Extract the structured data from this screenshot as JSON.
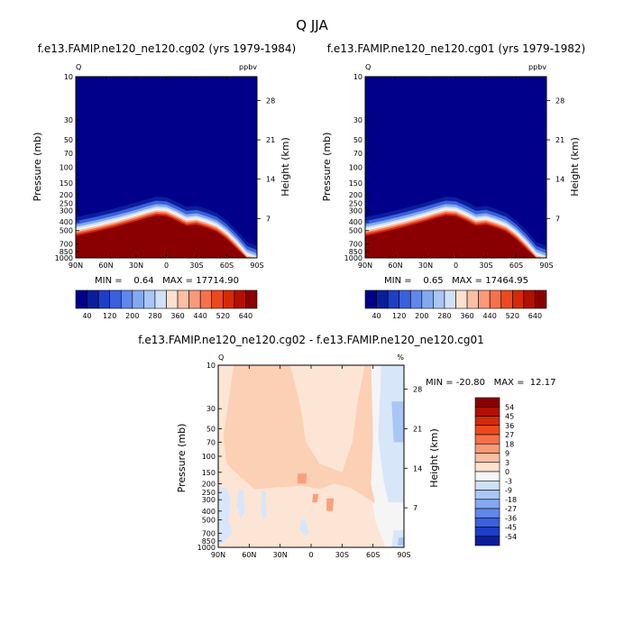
{
  "page": {
    "title": "Q  JJA"
  },
  "chart_data": [
    {
      "type": "heatmap",
      "id": "panel_a",
      "title": "f.e13.FAMIP.ne120_ne120.cg02 (yrs 1979-1984)",
      "left_label": "Q",
      "right_label": "ppbv",
      "ylabel": "Pressure (mb)",
      "y2label": "Height (km)",
      "x_ticks": [
        "90N",
        "60N",
        "30N",
        "0",
        "30S",
        "60S",
        "90S"
      ],
      "x_values": [
        90,
        60,
        30,
        0,
        -30,
        -60,
        -90
      ],
      "y_ticks": [
        "10",
        "30",
        "50",
        "70",
        "100",
        "150",
        "200",
        "250",
        "300",
        "400",
        "500",
        "700",
        "850",
        "1000"
      ],
      "y_values": [
        10,
        30,
        50,
        70,
        100,
        150,
        200,
        250,
        300,
        400,
        500,
        700,
        850,
        1000
      ],
      "y_range_mb": [
        10,
        1000
      ],
      "height_ticks": [
        "28",
        "21",
        "14",
        "7"
      ],
      "height_values_km": [
        28,
        21,
        14,
        7
      ],
      "stats_text": "MIN =    0.64   MAX = 17714.90",
      "min": 0.64,
      "max": 17714.9,
      "colorbar_labels": [
        "40",
        "120",
        "200",
        "280",
        "360",
        "440",
        "520",
        "640"
      ],
      "level_count": 16,
      "boundary": {
        "lats": [
          90,
          70,
          50,
          30,
          20,
          10,
          0,
          -10,
          -20,
          -30,
          -40,
          -50,
          -60,
          -70,
          -80,
          -90
        ],
        "tropopause_mb": [
          480,
          430,
          380,
          330,
          305,
          285,
          290,
          325,
          370,
          360,
          390,
          430,
          520,
          670,
          900,
          1000
        ]
      }
    },
    {
      "type": "heatmap",
      "id": "panel_b",
      "title": "f.e13.FAMIP.ne120_ne120.cg01 (yrs 1979-1982)",
      "left_label": "Q",
      "right_label": "ppbv",
      "ylabel": "Pressure (mb)",
      "y2label": "Height (km)",
      "x_ticks": [
        "90N",
        "60N",
        "30N",
        "0",
        "30S",
        "60S",
        "90S"
      ],
      "x_values": [
        90,
        60,
        30,
        0,
        -30,
        -60,
        -90
      ],
      "y_ticks": [
        "10",
        "30",
        "50",
        "70",
        "100",
        "150",
        "200",
        "250",
        "300",
        "400",
        "500",
        "700",
        "850",
        "1000"
      ],
      "y_values": [
        10,
        30,
        50,
        70,
        100,
        150,
        200,
        250,
        300,
        400,
        500,
        700,
        850,
        1000
      ],
      "y_range_mb": [
        10,
        1000
      ],
      "height_ticks": [
        "28",
        "21",
        "14",
        "7"
      ],
      "height_values_km": [
        28,
        21,
        14,
        7
      ],
      "stats_text": "MIN =    0.65   MAX = 17464.95",
      "min": 0.65,
      "max": 17464.95,
      "colorbar_labels": [
        "40",
        "120",
        "200",
        "280",
        "360",
        "440",
        "520",
        "640"
      ],
      "level_count": 16,
      "boundary": {
        "lats": [
          90,
          70,
          50,
          30,
          20,
          10,
          0,
          -10,
          -20,
          -30,
          -40,
          -50,
          -60,
          -70,
          -80,
          -90
        ],
        "tropopause_mb": [
          480,
          430,
          380,
          330,
          305,
          285,
          290,
          325,
          370,
          360,
          390,
          430,
          520,
          670,
          900,
          1000
        ]
      }
    },
    {
      "type": "heatmap",
      "id": "panel_diff",
      "title": "f.e13.FAMIP.ne120_ne120.cg02 - f.e13.FAMIP.ne120_ne120.cg01",
      "left_label": "Q",
      "right_label": "%",
      "ylabel": "Pressure (mb)",
      "y2label": "Height (km)",
      "x_ticks": [
        "90N",
        "60N",
        "30N",
        "0",
        "30S",
        "60S",
        "90S"
      ],
      "x_values": [
        90,
        60,
        30,
        0,
        -30,
        -60,
        -90
      ],
      "y_ticks": [
        "10",
        "30",
        "50",
        "70",
        "100",
        "150",
        "200",
        "250",
        "300",
        "400",
        "500",
        "700",
        "850",
        "1000"
      ],
      "y_values": [
        10,
        30,
        50,
        70,
        100,
        150,
        200,
        250,
        300,
        400,
        500,
        700,
        850,
        1000
      ],
      "y_range_mb": [
        10,
        1000
      ],
      "height_ticks": [
        "28",
        "21",
        "14",
        "7"
      ],
      "height_values_km": [
        28,
        21,
        14,
        7
      ],
      "stats_text": "MIN = -20.80   MAX =  12.17",
      "min": -20.8,
      "max": 12.17,
      "colorbar_labels": [
        "54",
        "45",
        "36",
        "27",
        "18",
        "9",
        "3",
        "0",
        "-3",
        "-9",
        "-18",
        "-27",
        "-36",
        "-45",
        "-54"
      ],
      "colorbar_colors": [
        "#8a0000",
        "#b30f00",
        "#d42a08",
        "#ec4a1e",
        "#f6714a",
        "#f99a78",
        "#fbbfa3",
        "#fde0cf",
        "#f5f5f5",
        "#cfe0f8",
        "#a9c6f5",
        "#84a8f0",
        "#5f88ea",
        "#3a60dd",
        "#1d3ec6",
        "#0a1e9c"
      ],
      "regions": [
        {
          "value": 3,
          "poly": [
            [
              90,
              10
            ],
            [
              -58,
              10
            ],
            [
              -60,
              60
            ],
            [
              -58,
              250
            ],
            [
              -62,
              500
            ],
            [
              -72,
              1000
            ],
            [
              90,
              1000
            ]
          ]
        },
        {
          "value": 9,
          "poly": [
            [
              75,
              10
            ],
            [
              20,
              10
            ],
            [
              10,
              30
            ],
            [
              5,
              70
            ],
            [
              -8,
              120
            ],
            [
              -30,
              150
            ],
            [
              -40,
              70
            ],
            [
              -45,
              25
            ],
            [
              -52,
              10
            ],
            [
              -58,
              10
            ],
            [
              -60,
              60
            ],
            [
              -58,
              200
            ],
            [
              -62,
              330
            ],
            [
              -48,
              260
            ],
            [
              -38,
              220
            ],
            [
              -22,
              200
            ],
            [
              -8,
              230
            ],
            [
              8,
              210
            ],
            [
              35,
              220
            ],
            [
              55,
              230
            ],
            [
              68,
              170
            ],
            [
              82,
              120
            ],
            [
              85,
              60
            ],
            [
              80,
              25
            ]
          ]
        },
        {
          "value": 18,
          "poly": [
            [
              13,
              155
            ],
            [
              4,
              155
            ],
            [
              5,
              200
            ],
            [
              13,
              200
            ]
          ]
        },
        {
          "value": 18,
          "poly": [
            [
              -15,
              290
            ],
            [
              -22,
              290
            ],
            [
              -21,
              400
            ],
            [
              -15,
              400
            ]
          ]
        },
        {
          "value": 18,
          "poly": [
            [
              -2,
              260
            ],
            [
              -7,
              260
            ],
            [
              -6,
              320
            ],
            [
              -1,
              320
            ]
          ]
        },
        {
          "value": -3,
          "poly": [
            [
              90,
              220
            ],
            [
              82,
              220
            ],
            [
              78,
              300
            ],
            [
              80,
              500
            ],
            [
              76,
              700
            ],
            [
              86,
              900
            ],
            [
              90,
              900
            ]
          ]
        },
        {
          "value": -3,
          "poly": [
            [
              70,
              230
            ],
            [
              66,
              230
            ],
            [
              64,
              400
            ],
            [
              68,
              500
            ],
            [
              72,
              350
            ]
          ]
        },
        {
          "value": -3,
          "poly": [
            [
              48,
              240
            ],
            [
              44,
              240
            ],
            [
              43,
              450
            ],
            [
              47,
              500
            ],
            [
              49,
              350
            ]
          ]
        },
        {
          "value": -3,
          "poly": [
            [
              10,
              500
            ],
            [
              5,
              500
            ],
            [
              2,
              700
            ],
            [
              6,
              750
            ],
            [
              11,
              650
            ]
          ]
        },
        {
          "value": -3,
          "poly": [
            [
              -68,
              10
            ],
            [
              -90,
              10
            ],
            [
              -90,
              320
            ],
            [
              -75,
              320
            ],
            [
              -70,
              180
            ],
            [
              -65,
              60
            ]
          ]
        },
        {
          "value": -3,
          "poly": [
            [
              -80,
              650
            ],
            [
              -90,
              650
            ],
            [
              -90,
              1000
            ],
            [
              -78,
              1000
            ]
          ]
        },
        {
          "value": -9,
          "poly": [
            [
              -85,
              780
            ],
            [
              -90,
              780
            ],
            [
              -90,
              950
            ],
            [
              -84,
              950
            ]
          ]
        },
        {
          "value": -9,
          "poly": [
            [
              -78,
              25
            ],
            [
              -90,
              25
            ],
            [
              -90,
              70
            ],
            [
              -80,
              70
            ]
          ]
        }
      ]
    }
  ]
}
